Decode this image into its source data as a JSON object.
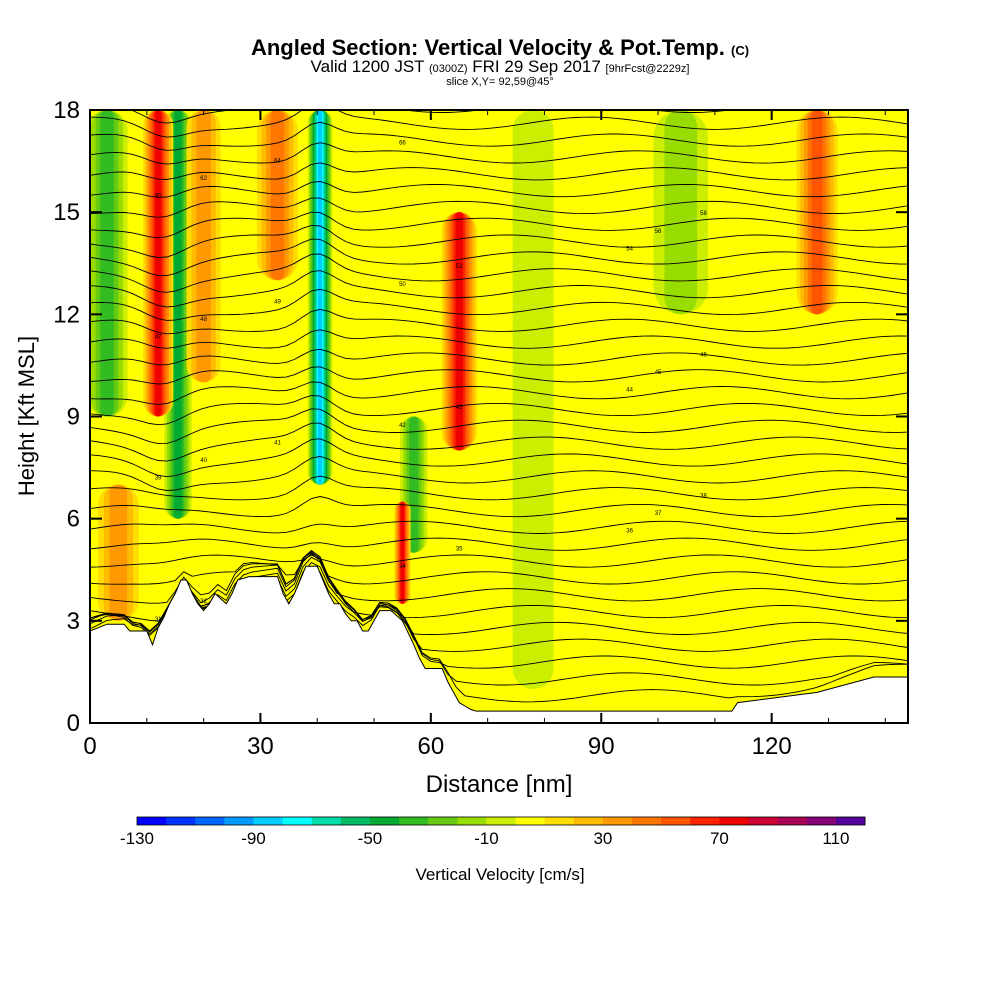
{
  "title": {
    "main": "Angled Section: Vertical Velocity & Pot.Temp.",
    "unit_tag": "(C)"
  },
  "subtitle": {
    "valid": "Valid 1200 JST",
    "utc": "(0300Z)",
    "date": "FRI 29 Sep 2017",
    "forecast": "[9hrFcst@2229z]"
  },
  "slice_label": "slice X,Y= 92,59@45°",
  "chart_data": {
    "type": "heatmap",
    "xlabel": "Distance [nm]",
    "ylabel": "Height [Kft MSL]",
    "xlim": [
      0,
      144
    ],
    "ylim": [
      0,
      18
    ],
    "xticks": [
      0,
      30,
      60,
      90,
      120
    ],
    "yticks": [
      0,
      3,
      6,
      9,
      12,
      15,
      18
    ],
    "grid": false,
    "background_velocity": 0,
    "updrafts": [
      {
        "x": 12,
        "width": 2.2,
        "velocity": 70,
        "from": 9,
        "to": 18
      },
      {
        "x": 20,
        "width": 2.5,
        "velocity": 30,
        "from": 10,
        "to": 18
      },
      {
        "x": 33,
        "width": 3,
        "velocity": 40,
        "from": 13,
        "to": 18
      },
      {
        "x": 65,
        "width": 2.6,
        "velocity": 70,
        "from": 8,
        "to": 15
      },
      {
        "x": 55,
        "width": 1.2,
        "velocity": 70,
        "from": 3.5,
        "to": 6.5
      },
      {
        "x": 128,
        "width": 3,
        "velocity": 50,
        "from": 12,
        "to": 18
      },
      {
        "x": 5,
        "width": 3,
        "velocity": 30,
        "from": 3,
        "to": 7
      }
    ],
    "downdrafts": [
      {
        "x": 40.5,
        "width": 1.8,
        "velocity": -90,
        "from": 7,
        "to": 18
      },
      {
        "x": 15.5,
        "width": 2,
        "velocity": -50,
        "from": 6,
        "to": 18
      },
      {
        "x": 3,
        "width": 3,
        "velocity": -40,
        "from": 9,
        "to": 18
      },
      {
        "x": 57,
        "width": 2,
        "velocity": -40,
        "from": 5,
        "to": 9
      },
      {
        "x": 104,
        "width": 4,
        "velocity": -20,
        "from": 12,
        "to": 18
      },
      {
        "x": 78,
        "width": 3,
        "velocity": -10,
        "from": 1,
        "to": 18
      }
    ],
    "terrain": {
      "x": [
        0,
        3,
        6,
        7,
        10,
        11,
        12,
        13,
        14,
        15,
        16,
        17,
        18,
        19,
        20,
        21,
        22,
        24,
        25,
        26,
        28,
        33,
        34,
        35,
        36,
        37,
        38,
        39,
        40,
        41,
        42,
        43,
        44,
        45,
        46,
        47,
        48,
        49,
        50,
        51,
        53,
        55,
        57,
        58,
        59,
        62,
        63,
        64,
        65,
        66,
        67,
        68,
        113,
        114,
        128,
        138,
        144
      ],
      "height": [
        2.7,
        2.9,
        2.9,
        2.7,
        2.7,
        2.3,
        2.8,
        3.1,
        3.5,
        3.8,
        4.2,
        4.2,
        3.8,
        3.5,
        3.3,
        3.5,
        3.8,
        3.5,
        3.8,
        4.2,
        4.3,
        4.3,
        3.8,
        3.5,
        3.8,
        4.2,
        4.6,
        4.6,
        4.6,
        4.2,
        3.8,
        3.5,
        3.5,
        3.2,
        3.0,
        3.0,
        2.7,
        2.7,
        3.0,
        3.3,
        3.3,
        3.0,
        2.3,
        1.9,
        1.6,
        1.6,
        1.2,
        0.9,
        0.6,
        0.5,
        0.4,
        0.35,
        0.35,
        0.6,
        0.9,
        1.35,
        1.35
      ]
    },
    "theta_isolines": {
      "count": 36,
      "label_values": [
        "31",
        "32",
        "33",
        "34",
        "35",
        "36",
        "37",
        "38",
        "39",
        "40",
        "41",
        "42",
        "43",
        "44",
        "45",
        "46",
        "47",
        "48",
        "49",
        "50",
        "52",
        "54",
        "56",
        "58",
        "60",
        "62",
        "64",
        "66"
      ]
    },
    "colorbar": {
      "label": "Vertical Velocity [cm/s]",
      "tick_labels": [
        "-130",
        "-90",
        "-50",
        "-10",
        "30",
        "70",
        "110"
      ],
      "colors": [
        "#0000ff",
        "#0033ff",
        "#0066ff",
        "#0099ff",
        "#00ccff",
        "#00ffff",
        "#00ddaa",
        "#00bb66",
        "#00aa33",
        "#33bb22",
        "#66cc11",
        "#99dd00",
        "#ccee00",
        "#ffff00",
        "#ffdd00",
        "#ffbb00",
        "#ff9900",
        "#ff7700",
        "#ff5500",
        "#ff2200",
        "#ee0000",
        "#cc0033",
        "#aa0055",
        "#880077",
        "#550099"
      ],
      "min": -130,
      "step": 10
    }
  }
}
